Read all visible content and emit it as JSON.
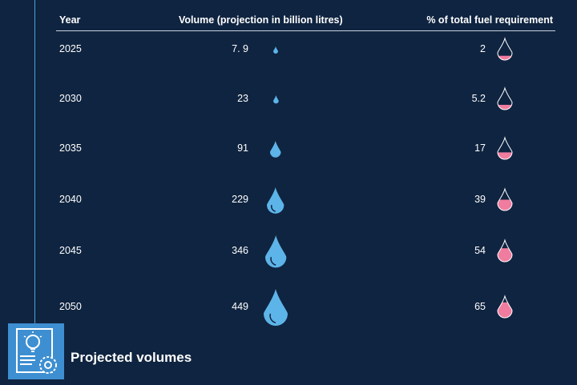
{
  "chart_data": {
    "type": "table",
    "title": "Projected volumes",
    "columns": [
      "Year",
      "Volume (projection in billion litres)",
      "% of total fuel requirement"
    ],
    "rows": [
      {
        "year": "2025",
        "volume": "7. 9",
        "percent": "2"
      },
      {
        "year": "2030",
        "volume": "23",
        "percent": "5.2"
      },
      {
        "year": "2035",
        "volume": "91",
        "percent": "17"
      },
      {
        "year": "2040",
        "volume": "229",
        "percent": "39"
      },
      {
        "year": "2045",
        "volume": "346",
        "percent": "54"
      },
      {
        "year": "2050",
        "volume": "449",
        "percent": "65"
      }
    ],
    "volume_values": [
      7.9,
      23,
      91,
      229,
      346,
      449
    ],
    "percent_values": [
      2,
      5.2,
      17,
      39,
      54,
      65
    ],
    "colors": {
      "background": "#0f2440",
      "volume_drop": "#5db4e8",
      "percent_fill": "#f07ca0",
      "accent": "#3d8fd1"
    }
  },
  "icons": [
    "lightbulb-gear-document-icon"
  ]
}
